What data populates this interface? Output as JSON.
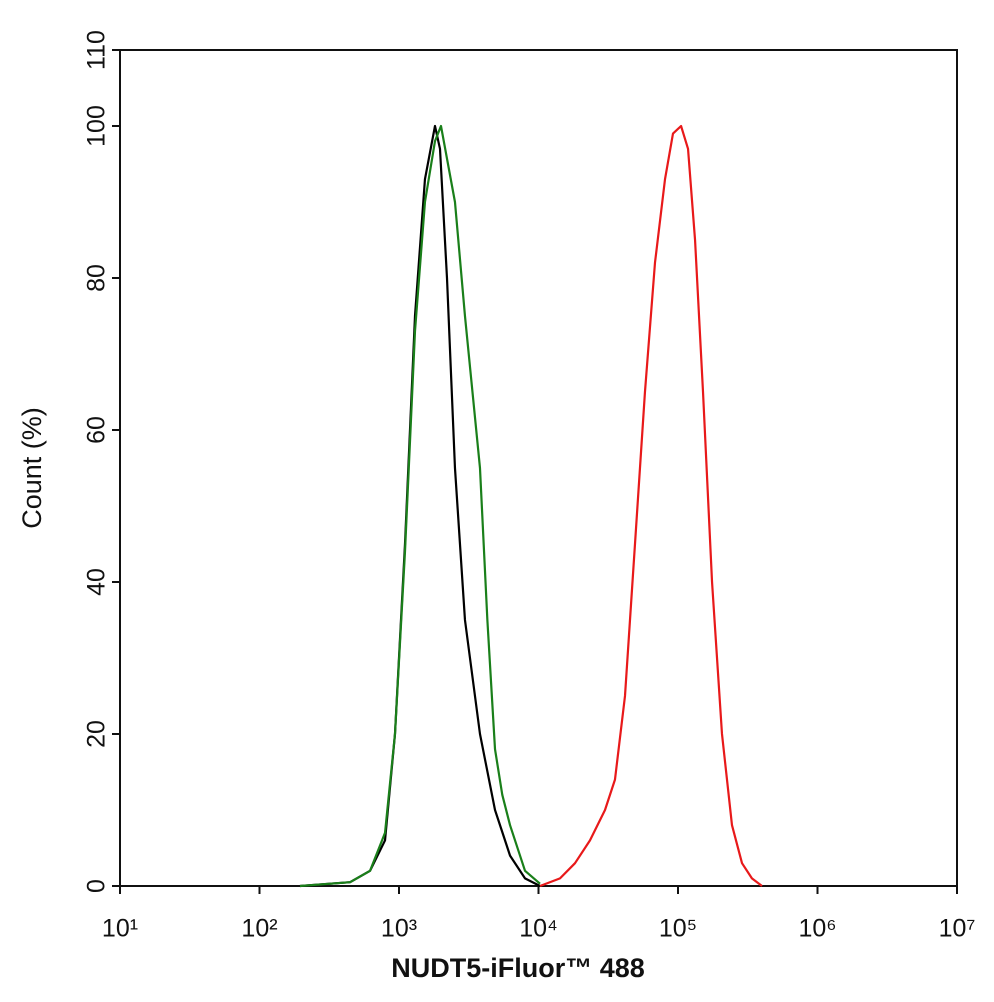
{
  "chart_data": {
    "type": "line",
    "xlabel": "NUDT5-iFluor™ 488",
    "ylabel": "Count  (%)",
    "xscale": "log",
    "xlim": [
      10,
      10000000
    ],
    "ylim": [
      0,
      110
    ],
    "xticks": [
      {
        "value": 10,
        "label": "10¹"
      },
      {
        "value": 100,
        "label": "10²"
      },
      {
        "value": 1000,
        "label": "10³"
      },
      {
        "value": 10000,
        "label": "10⁴"
      },
      {
        "value": 100000,
        "label": "10⁵"
      },
      {
        "value": 1000000,
        "label": "10⁶"
      },
      {
        "value": 10000000,
        "label": "10⁷"
      }
    ],
    "yticks": [
      0,
      20,
      40,
      60,
      80,
      100,
      110
    ],
    "grid": false,
    "series": [
      {
        "color": "#000000",
        "x": [
          195,
          446,
          620,
          794,
          936,
          1104,
          1302,
          1535,
          1811,
          1967,
          2208,
          2519,
          2971,
          3806,
          4878,
          6252,
          8004,
          10250
        ],
        "values": [
          0,
          0.5,
          2,
          6,
          20,
          45,
          75,
          93,
          100,
          97,
          80,
          55,
          35,
          20,
          10,
          4,
          1,
          0
        ]
      },
      {
        "color": "#1a7f1a",
        "x": [
          195,
          446,
          620,
          794,
          936,
          1104,
          1302,
          1535,
          1811,
          2000,
          2519,
          2971,
          3806,
          4300,
          4878,
          5500,
          6252,
          8004,
          10250
        ],
        "values": [
          0,
          0.5,
          2,
          7,
          20,
          44,
          73,
          90,
          98,
          100,
          90,
          75,
          55,
          35,
          18,
          12,
          8,
          2,
          0.3
        ]
      },
      {
        "color": "#e8191a",
        "x": [
          10250,
          14260,
          18270,
          23390,
          29970,
          35330,
          41690,
          49170,
          57960,
          68390,
          80700,
          92070,
          105200,
          118000,
          132500,
          151100,
          175400,
          206700,
          243800,
          287700,
          338800,
          400000
        ],
        "values": [
          0,
          1,
          3,
          6,
          10,
          14,
          25,
          45,
          65,
          82,
          93,
          99,
          100,
          97,
          85,
          65,
          40,
          20,
          8,
          3,
          1,
          0
        ]
      }
    ]
  }
}
